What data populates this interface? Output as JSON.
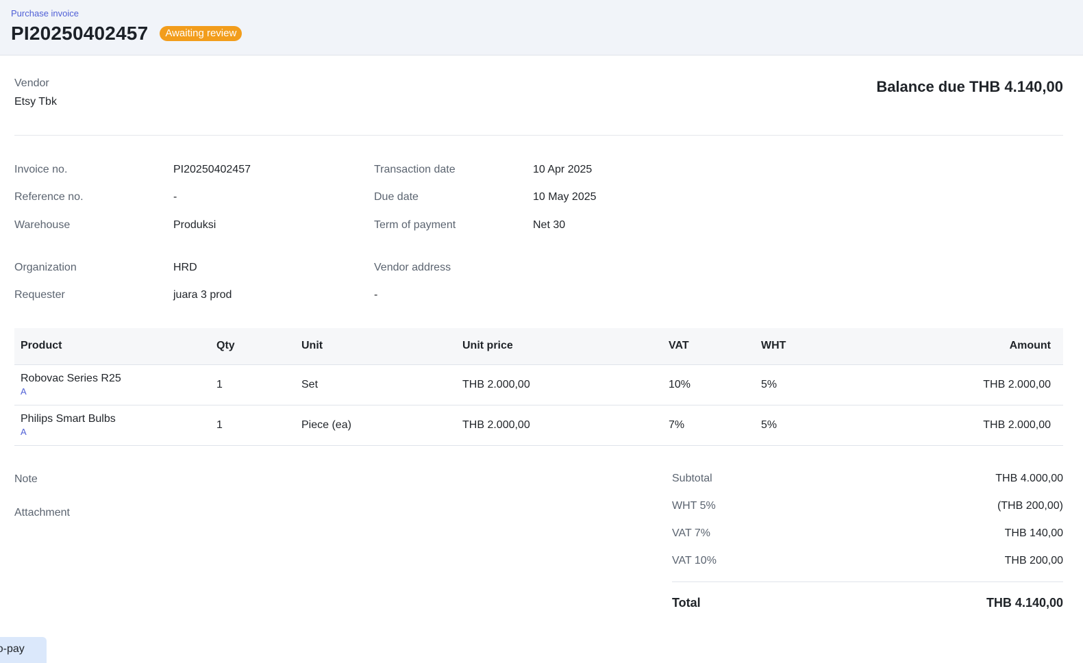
{
  "header": {
    "breadcrumb": "Purchase invoice",
    "title": "PI20250402457",
    "status": "Awaiting review",
    "status_color": "#f29d1c"
  },
  "vendor": {
    "label": "Vendor",
    "name": "Etsy Tbk"
  },
  "balance_due": "Balance due THB 4.140,00",
  "details": {
    "invoice_no": {
      "label": "Invoice no.",
      "value": "PI20250402457"
    },
    "reference_no": {
      "label": "Reference no.",
      "value": "-"
    },
    "warehouse": {
      "label": "Warehouse",
      "value": "Produksi"
    },
    "transaction_date": {
      "label": "Transaction date",
      "value": "10 Apr 2025"
    },
    "due_date": {
      "label": "Due date",
      "value": "10 May 2025"
    },
    "term_of_payment": {
      "label": "Term of payment",
      "value": "Net 30"
    },
    "organization": {
      "label": "Organization",
      "value": "HRD"
    },
    "requester": {
      "label": "Requester",
      "value": "juara 3 prod"
    },
    "vendor_address": {
      "label": "Vendor address",
      "value": "-"
    }
  },
  "table": {
    "headers": {
      "product": "Product",
      "qty": "Qty",
      "unit": "Unit",
      "unit_price": "Unit price",
      "vat": "VAT",
      "wht": "WHT",
      "amount": "Amount"
    },
    "rows": [
      {
        "product": "Robovac Series R25",
        "variant": "A",
        "qty": "1",
        "unit": "Set",
        "unit_price": "THB 2.000,00",
        "vat": "10%",
        "wht": "5%",
        "amount": "THB 2.000,00"
      },
      {
        "product": "Philips Smart Bulbs",
        "variant": "A",
        "qty": "1",
        "unit": "Piece (ea)",
        "unit_price": "THB 2.000,00",
        "vat": "7%",
        "wht": "5%",
        "amount": "THB 2.000,00"
      }
    ]
  },
  "note_label": "Note",
  "attachment_label": "Attachment",
  "summary": {
    "subtotal": {
      "label": "Subtotal",
      "value": "THB 4.000,00"
    },
    "wht": {
      "label": "WHT 5%",
      "value": "(THB 200,00)"
    },
    "vat7": {
      "label": "VAT 7%",
      "value": "THB 140,00"
    },
    "vat10": {
      "label": "VAT 10%",
      "value": "THB 200,00"
    },
    "total": {
      "label": "Total",
      "value": "THB 4.140,00"
    }
  },
  "footer_chip": "-to-pay"
}
